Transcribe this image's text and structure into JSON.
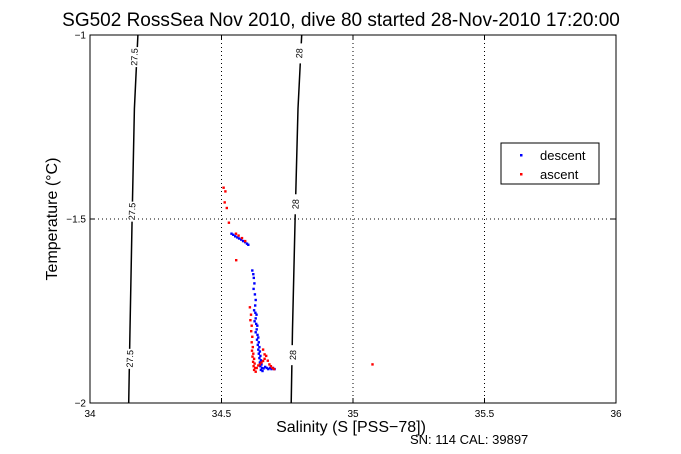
{
  "chart_data": {
    "type": "scatter",
    "title": "SG502 RossSea Nov 2010, dive 80 started 28-Nov-2010 17:20:00",
    "xlabel": "Salinity (S [PSS−78])",
    "ylabel": "Temperature (°C)",
    "footer": "SN: 114  CAL: 39897",
    "xlim": [
      34,
      36
    ],
    "ylim": [
      -2,
      -1
    ],
    "xticks": [
      34,
      34.5,
      35,
      35.5,
      36
    ],
    "xtick_labels": [
      "34",
      "34.5",
      "35",
      "35.5",
      "36"
    ],
    "yticks": [
      -2,
      -1.5,
      -1
    ],
    "ytick_labels": [
      "−2",
      "−1.5",
      "−1"
    ],
    "grid": true,
    "legend_position": "right",
    "density_contours": [
      {
        "level_label": "27.5",
        "points": [
          [
            34.147,
            -2.0
          ],
          [
            34.152,
            -1.8
          ],
          [
            34.16,
            -1.5
          ],
          [
            34.169,
            -1.2
          ],
          [
            34.182,
            -1.0
          ]
        ],
        "label_positions": [
          [
            34.169,
            -1.06
          ],
          [
            34.16,
            -1.48
          ],
          [
            34.152,
            -1.88
          ]
        ]
      },
      {
        "level_label": "28",
        "points": [
          [
            34.765,
            -2.0
          ],
          [
            34.77,
            -1.8
          ],
          [
            34.78,
            -1.5
          ],
          [
            34.791,
            -1.2
          ],
          [
            34.805,
            -1.0
          ]
        ],
        "label_positions": [
          [
            34.796,
            -1.05
          ],
          [
            34.782,
            -1.46
          ],
          [
            34.772,
            -1.87
          ]
        ]
      }
    ],
    "series": [
      {
        "name": "descent",
        "color": "#0000ff",
        "points": [
          [
            34.538,
            -1.54
          ],
          [
            34.545,
            -1.543
          ],
          [
            34.552,
            -1.547
          ],
          [
            34.56,
            -1.55
          ],
          [
            34.567,
            -1.553
          ],
          [
            34.575,
            -1.556
          ],
          [
            34.582,
            -1.56
          ],
          [
            34.59,
            -1.563
          ],
          [
            34.597,
            -1.567
          ],
          [
            34.602,
            -1.57
          ],
          [
            34.617,
            -1.64
          ],
          [
            34.621,
            -1.65
          ],
          [
            34.623,
            -1.66
          ],
          [
            34.625,
            -1.675
          ],
          [
            34.622,
            -1.69
          ],
          [
            34.627,
            -1.705
          ],
          [
            34.63,
            -1.72
          ],
          [
            34.628,
            -1.735
          ],
          [
            34.624,
            -1.748
          ],
          [
            34.629,
            -1.755
          ],
          [
            34.633,
            -1.76
          ],
          [
            34.63,
            -1.77
          ],
          [
            34.626,
            -1.778
          ],
          [
            34.632,
            -1.785
          ],
          [
            34.636,
            -1.79
          ],
          [
            34.634,
            -1.8
          ],
          [
            34.63,
            -1.808
          ],
          [
            34.637,
            -1.815
          ],
          [
            34.64,
            -1.822
          ],
          [
            34.635,
            -1.828
          ],
          [
            34.642,
            -1.835
          ],
          [
            34.638,
            -1.842
          ],
          [
            34.644,
            -1.848
          ],
          [
            34.64,
            -1.855
          ],
          [
            34.646,
            -1.86
          ],
          [
            34.642,
            -1.866
          ],
          [
            34.648,
            -1.872
          ],
          [
            34.644,
            -1.878
          ],
          [
            34.65,
            -1.884
          ],
          [
            34.646,
            -1.89
          ],
          [
            34.652,
            -1.895
          ],
          [
            34.648,
            -1.9
          ],
          [
            34.654,
            -1.905
          ],
          [
            34.65,
            -1.91
          ],
          [
            34.656,
            -1.913
          ],
          [
            34.66,
            -1.906
          ],
          [
            34.666,
            -1.902
          ],
          [
            34.672,
            -1.905
          ],
          [
            34.678,
            -1.908
          ],
          [
            34.684,
            -1.905
          ],
          [
            34.69,
            -1.908
          ],
          [
            34.696,
            -1.905
          ],
          [
            34.702,
            -1.908
          ]
        ]
      },
      {
        "name": "ascent",
        "color": "#ff0000",
        "points": [
          [
            34.508,
            -1.415
          ],
          [
            34.515,
            -1.425
          ],
          [
            34.512,
            -1.455
          ],
          [
            34.52,
            -1.47
          ],
          [
            34.528,
            -1.51
          ],
          [
            34.555,
            -1.54
          ],
          [
            34.565,
            -1.545
          ],
          [
            34.578,
            -1.552
          ],
          [
            34.59,
            -1.56
          ],
          [
            34.556,
            -1.612
          ],
          [
            34.608,
            -1.74
          ],
          [
            34.612,
            -1.76
          ],
          [
            34.61,
            -1.775
          ],
          [
            34.615,
            -1.79
          ],
          [
            34.613,
            -1.805
          ],
          [
            34.617,
            -1.82
          ],
          [
            34.615,
            -1.835
          ],
          [
            34.619,
            -1.848
          ],
          [
            34.616,
            -1.858
          ],
          [
            34.621,
            -1.866
          ],
          [
            34.618,
            -1.874
          ],
          [
            34.624,
            -1.88
          ],
          [
            34.62,
            -1.888
          ],
          [
            34.626,
            -1.893
          ],
          [
            34.622,
            -1.9
          ],
          [
            34.628,
            -1.905
          ],
          [
            34.624,
            -1.91
          ],
          [
            34.63,
            -1.915
          ],
          [
            34.634,
            -1.905
          ],
          [
            34.64,
            -1.898
          ],
          [
            34.646,
            -1.895
          ],
          [
            34.652,
            -1.89
          ],
          [
            34.658,
            -1.886
          ],
          [
            34.664,
            -1.88
          ],
          [
            34.67,
            -1.872
          ],
          [
            34.676,
            -1.885
          ],
          [
            34.682,
            -1.895
          ],
          [
            34.688,
            -1.9
          ],
          [
            34.694,
            -1.905
          ],
          [
            34.7,
            -1.908
          ],
          [
            34.664,
            -1.868
          ],
          [
            34.658,
            -1.855
          ],
          [
            35.074,
            -1.895
          ]
        ]
      }
    ]
  }
}
